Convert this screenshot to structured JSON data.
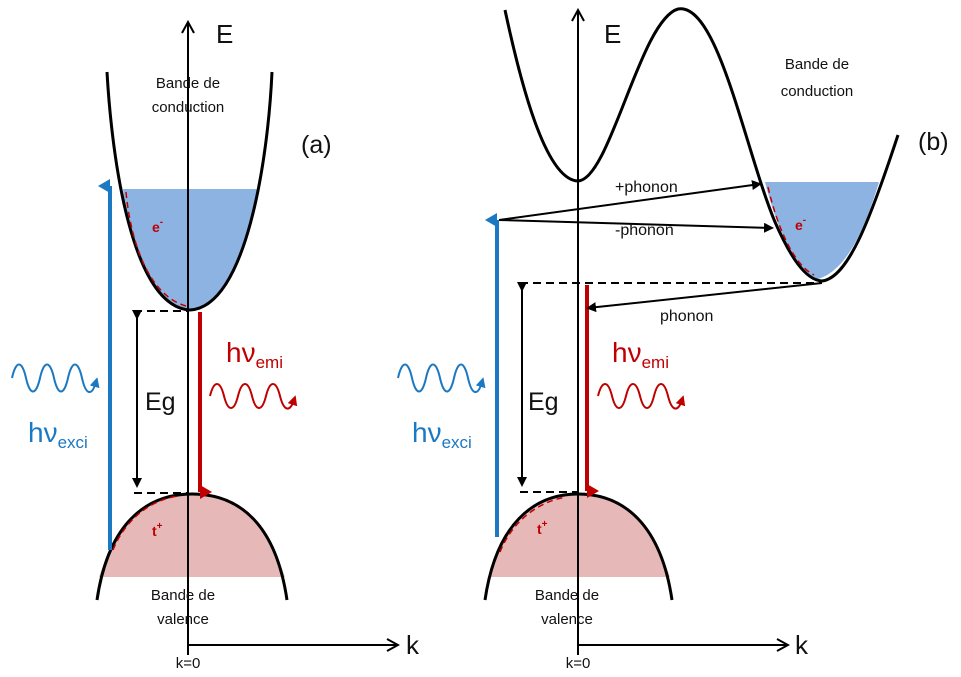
{
  "colors": {
    "conduction_fill": "#8db3e2",
    "valence_fill": "#e6b9b8",
    "excitation": "#1b78c2",
    "emission": "#c00000",
    "line": "#000000"
  },
  "panels": [
    {
      "id": "a",
      "panel_label": "(a)",
      "axis_e": "E",
      "axis_k": "k",
      "k_zero": "k=0",
      "conduction_label_1": "Bande de",
      "conduction_label_2": "conduction",
      "valence_label_1": "Bande de",
      "valence_label_2": "valence",
      "electron": "e",
      "electron_sign": "-",
      "hole": "t",
      "hole_sign": "+",
      "gap": "Eg",
      "excitation_hv": "hν",
      "excitation_sub": "exci",
      "emission_hv": "hν",
      "emission_sub": "emi"
    },
    {
      "id": "b",
      "panel_label": "(b)",
      "axis_e": "E",
      "axis_k": "k",
      "k_zero": "k=0",
      "conduction_label_1": "Bande de",
      "conduction_label_2": "conduction",
      "valence_label_1": "Bande de",
      "valence_label_2": "valence",
      "electron": "e",
      "electron_sign": "-",
      "hole": "t",
      "hole_sign": "+",
      "gap": "Eg",
      "excitation_hv": "hν",
      "excitation_sub": "exci",
      "emission_hv": "hν",
      "emission_sub": "emi",
      "phonon_plus": "+phonon",
      "phonon_minus": "-phonon",
      "phonon": "phonon"
    }
  ]
}
